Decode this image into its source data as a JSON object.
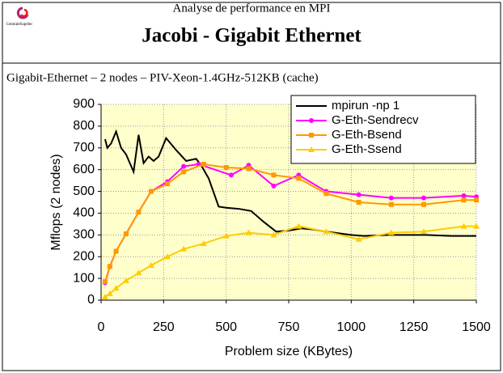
{
  "header": {
    "logo": "CentraleSupélec",
    "subtitle": "Analyse de performance en MPI",
    "title": "Jacobi - Gigabit Ethernet"
  },
  "chart_data": {
    "type": "line",
    "title": "Gigabit-Ethernet – 2 nodes – PIV-Xeon-1.4GHz-512KB (cache)",
    "xlabel": "Problem size (KBytes)",
    "ylabel": "Mflops (2 nodes)",
    "xlim": [
      0,
      1500
    ],
    "xticks": [
      0,
      250,
      500,
      750,
      1000,
      1250,
      1500
    ],
    "ylim": [
      0,
      900
    ],
    "yticks": [
      0,
      100,
      200,
      300,
      400,
      500,
      600,
      700,
      800,
      900
    ],
    "grid": true,
    "legend": "upper right",
    "background": "#ffffcc",
    "series": [
      {
        "name": "mpirun -np 1",
        "color": "#000000",
        "marker": "none",
        "x": [
          16,
          25,
          40,
          60,
          80,
          100,
          130,
          150,
          170,
          190,
          210,
          230,
          260,
          300,
          340,
          380,
          400,
          430,
          470,
          500,
          550,
          600,
          650,
          700,
          750,
          800,
          850,
          900,
          1000,
          1050,
          1150,
          1300,
          1400,
          1500
        ],
        "values": [
          740,
          700,
          720,
          775,
          700,
          670,
          590,
          760,
          630,
          660,
          640,
          660,
          745,
          690,
          640,
          650,
          620,
          560,
          430,
          425,
          420,
          410,
          360,
          315,
          320,
          330,
          325,
          315,
          300,
          295,
          300,
          300,
          295,
          295
        ]
      },
      {
        "name": "G-Eth-Sendrecv",
        "color": "#ff00ff",
        "marker": "circle",
        "x": [
          16,
          35,
          60,
          100,
          150,
          200,
          265,
          330,
          390,
          520,
          590,
          690,
          790,
          900,
          1030,
          1160,
          1290,
          1450,
          1500
        ],
        "values": [
          80,
          155,
          225,
          305,
          405,
          500,
          545,
          615,
          625,
          575,
          620,
          525,
          575,
          500,
          485,
          470,
          470,
          480,
          475
        ]
      },
      {
        "name": "G-Eth-Bsend",
        "color": "#ff9900",
        "marker": "square",
        "x": [
          16,
          35,
          60,
          100,
          150,
          200,
          265,
          330,
          410,
          500,
          590,
          690,
          790,
          900,
          1030,
          1160,
          1290,
          1450,
          1500
        ],
        "values": [
          85,
          155,
          225,
          305,
          405,
          500,
          535,
          590,
          625,
          610,
          605,
          575,
          560,
          490,
          450,
          440,
          440,
          460,
          460
        ]
      },
      {
        "name": "G-Eth-Ssend",
        "color": "#ffcc00",
        "marker": "triangle",
        "x": [
          16,
          35,
          60,
          100,
          150,
          200,
          265,
          330,
          410,
          500,
          590,
          690,
          790,
          900,
          1030,
          1160,
          1290,
          1450,
          1500
        ],
        "values": [
          15,
          30,
          55,
          90,
          125,
          160,
          200,
          235,
          260,
          295,
          310,
          300,
          340,
          315,
          280,
          310,
          315,
          340,
          340
        ]
      }
    ]
  }
}
